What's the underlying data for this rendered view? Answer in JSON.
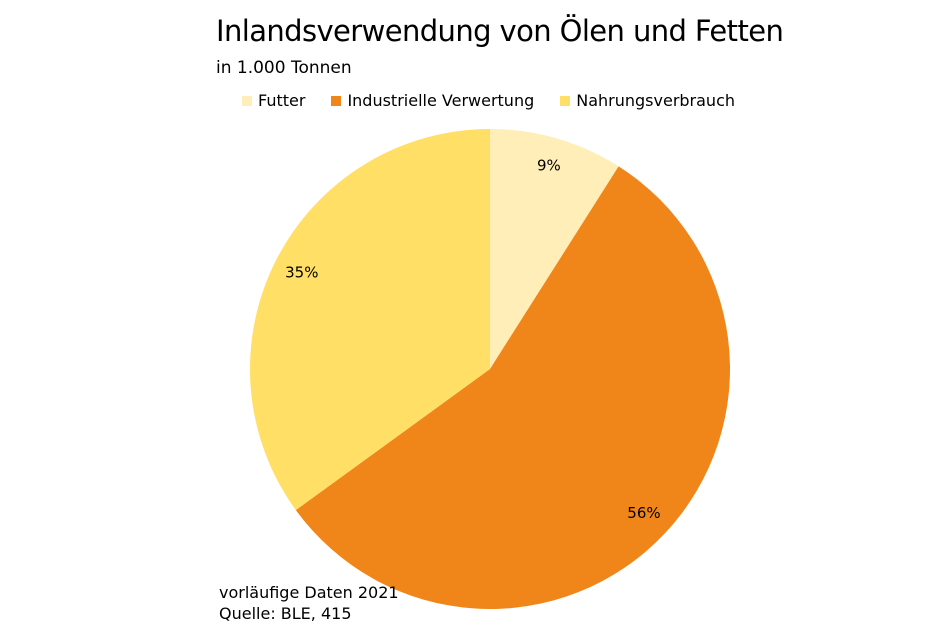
{
  "chart_data": {
    "type": "pie",
    "title": "Inlandsverwendung von Ölen und Fetten",
    "subtitle": "in 1.000 Tonnen",
    "start_angle_deg": 0,
    "direction": "clockwise",
    "legend_position": "top",
    "slices": [
      {
        "name": "Futter",
        "value": 9,
        "label": "9%",
        "color": "#FFEEB8"
      },
      {
        "name": "Industrielle Verwertung",
        "value": 56,
        "label": "56%",
        "color": "#F0861A"
      },
      {
        "name": "Nahrungsverbrauch",
        "value": 35,
        "label": "35%",
        "color": "#FFDF66"
      }
    ]
  },
  "footnote": {
    "line1": "vorläufige Daten 2021",
    "line2": "Quelle: BLE, 415"
  }
}
